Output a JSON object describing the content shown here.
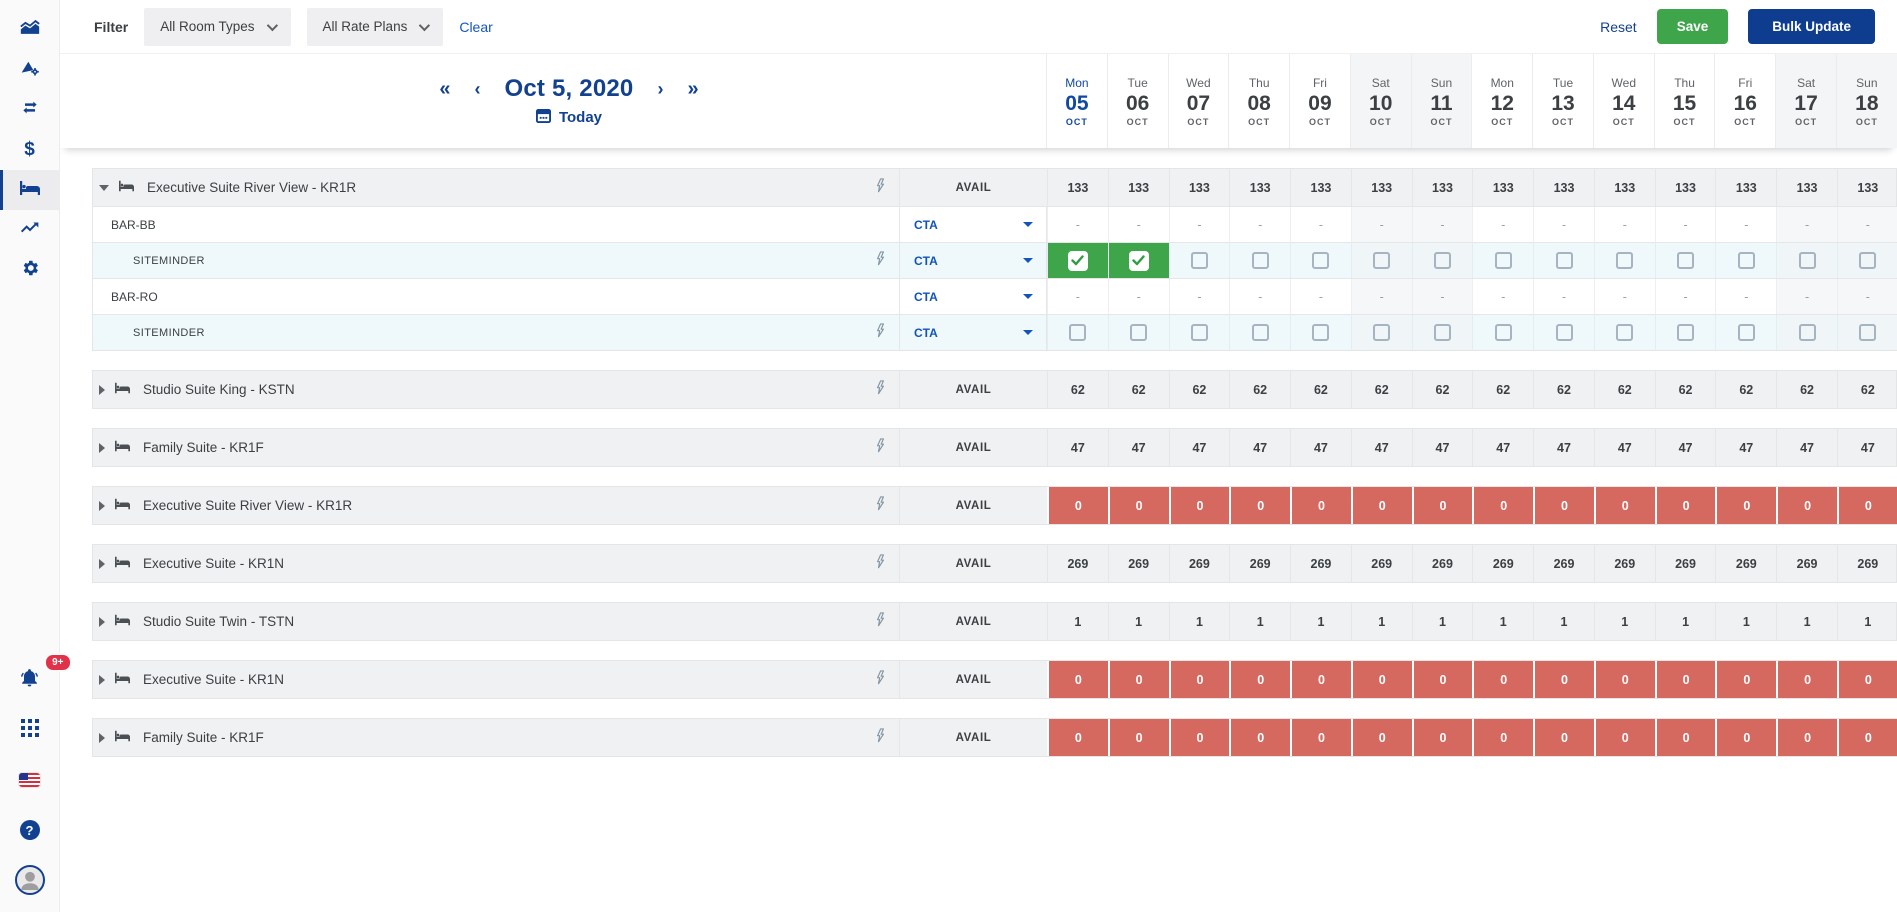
{
  "topbar": {
    "filter_label": "Filter",
    "room_types_dropdown": "All Room Types",
    "rate_plans_dropdown": "All Rate Plans",
    "clear_link": "Clear",
    "reset_button": "Reset",
    "save_button": "Save",
    "bulk_update_button": "Bulk Update"
  },
  "calendar": {
    "title": "Oct 5, 2020",
    "today_label": "Today",
    "nav": {
      "first": "«",
      "prev": "‹",
      "next": "›",
      "last": "»"
    },
    "days": [
      {
        "dow": "Mon",
        "day": "05",
        "month": "OCT",
        "today": true,
        "weekend": false
      },
      {
        "dow": "Tue",
        "day": "06",
        "month": "OCT",
        "today": false,
        "weekend": false
      },
      {
        "dow": "Wed",
        "day": "07",
        "month": "OCT",
        "today": false,
        "weekend": false
      },
      {
        "dow": "Thu",
        "day": "08",
        "month": "OCT",
        "today": false,
        "weekend": false
      },
      {
        "dow": "Fri",
        "day": "09",
        "month": "OCT",
        "today": false,
        "weekend": false
      },
      {
        "dow": "Sat",
        "day": "10",
        "month": "OCT",
        "today": false,
        "weekend": true
      },
      {
        "dow": "Sun",
        "day": "11",
        "month": "OCT",
        "today": false,
        "weekend": true
      },
      {
        "dow": "Mon",
        "day": "12",
        "month": "OCT",
        "today": false,
        "weekend": false
      },
      {
        "dow": "Tue",
        "day": "13",
        "month": "OCT",
        "today": false,
        "weekend": false
      },
      {
        "dow": "Wed",
        "day": "14",
        "month": "OCT",
        "today": false,
        "weekend": false
      },
      {
        "dow": "Thu",
        "day": "15",
        "month": "OCT",
        "today": false,
        "weekend": false
      },
      {
        "dow": "Fri",
        "day": "16",
        "month": "OCT",
        "today": false,
        "weekend": false
      },
      {
        "dow": "Sat",
        "day": "17",
        "month": "OCT",
        "today": false,
        "weekend": true
      },
      {
        "dow": "Sun",
        "day": "18",
        "month": "OCT",
        "today": false,
        "weekend": true
      }
    ]
  },
  "grid": {
    "avail_label": "AVAIL",
    "cta_label": "CTA",
    "dash": "-",
    "groups": [
      {
        "name": "Executive Suite River View - KR1R",
        "expanded": true,
        "state": "normal",
        "avail_values": [
          "133",
          "133",
          "133",
          "133",
          "133",
          "133",
          "133",
          "133",
          "133",
          "133",
          "133",
          "133",
          "133",
          "133"
        ],
        "rates": [
          {
            "label": "BAR-BB",
            "level": 1,
            "cell_type": "dash",
            "cta": "CTA"
          },
          {
            "label": "SITEMINDER",
            "level": 2,
            "cell_type": "checkbox",
            "cta": "CTA",
            "checked": [
              true,
              true,
              false,
              false,
              false,
              false,
              false,
              false,
              false,
              false,
              false,
              false,
              false,
              false
            ]
          },
          {
            "label": "BAR-RO",
            "level": 1,
            "cell_type": "dash",
            "cta": "CTA"
          },
          {
            "label": "SITEMINDER",
            "level": 2,
            "cell_type": "checkbox",
            "cta": "CTA",
            "checked": [
              false,
              false,
              false,
              false,
              false,
              false,
              false,
              false,
              false,
              false,
              false,
              false,
              false,
              false
            ]
          }
        ]
      },
      {
        "name": "Studio Suite King - KSTN",
        "expanded": false,
        "state": "normal",
        "avail_values": [
          "62",
          "62",
          "62",
          "62",
          "62",
          "62",
          "62",
          "62",
          "62",
          "62",
          "62",
          "62",
          "62",
          "62"
        ],
        "rates": []
      },
      {
        "name": "Family Suite - KR1F",
        "expanded": false,
        "state": "normal",
        "avail_values": [
          "47",
          "47",
          "47",
          "47",
          "47",
          "47",
          "47",
          "47",
          "47",
          "47",
          "47",
          "47",
          "47",
          "47"
        ],
        "rates": []
      },
      {
        "name": "Executive Suite River View - KR1R",
        "expanded": false,
        "state": "sold-out",
        "avail_values": [
          "0",
          "0",
          "0",
          "0",
          "0",
          "0",
          "0",
          "0",
          "0",
          "0",
          "0",
          "0",
          "0",
          "0"
        ],
        "rates": []
      },
      {
        "name": "Executive Suite - KR1N",
        "expanded": false,
        "state": "normal",
        "avail_values": [
          "269",
          "269",
          "269",
          "269",
          "269",
          "269",
          "269",
          "269",
          "269",
          "269",
          "269",
          "269",
          "269",
          "269"
        ],
        "rates": []
      },
      {
        "name": "Studio Suite Twin - TSTN",
        "expanded": false,
        "state": "normal",
        "avail_values": [
          "1",
          "1",
          "1",
          "1",
          "1",
          "1",
          "1",
          "1",
          "1",
          "1",
          "1",
          "1",
          "1",
          "1"
        ],
        "rates": []
      },
      {
        "name": "Executive Suite - KR1N",
        "expanded": false,
        "state": "sold-out",
        "avail_values": [
          "0",
          "0",
          "0",
          "0",
          "0",
          "0",
          "0",
          "0",
          "0",
          "0",
          "0",
          "0",
          "0",
          "0"
        ],
        "rates": []
      },
      {
        "name": "Family Suite - KR1F",
        "expanded": false,
        "state": "sold-out",
        "avail_values": [
          "0",
          "0",
          "0",
          "0",
          "0",
          "0",
          "0",
          "0",
          "0",
          "0",
          "0",
          "0",
          "0",
          "0"
        ],
        "rates": []
      }
    ]
  },
  "sidebar": {
    "notification_badge": "9+",
    "dollar_glyph": "$",
    "help_glyph": "?",
    "active_item": "rooms"
  },
  "colors": {
    "primary_blue": "#12418F",
    "nav_blue": "#0E3D8F",
    "cta_blue": "#1254B8",
    "link_blue": "#1356C5",
    "save_green": "#3FA54B",
    "checked_green": "#3FA54B",
    "sold_out_red": "#D5685F",
    "badge_red": "#E23249",
    "header_gray": "#F0F1F3",
    "siteminder_blue": "#EFF9FC"
  }
}
